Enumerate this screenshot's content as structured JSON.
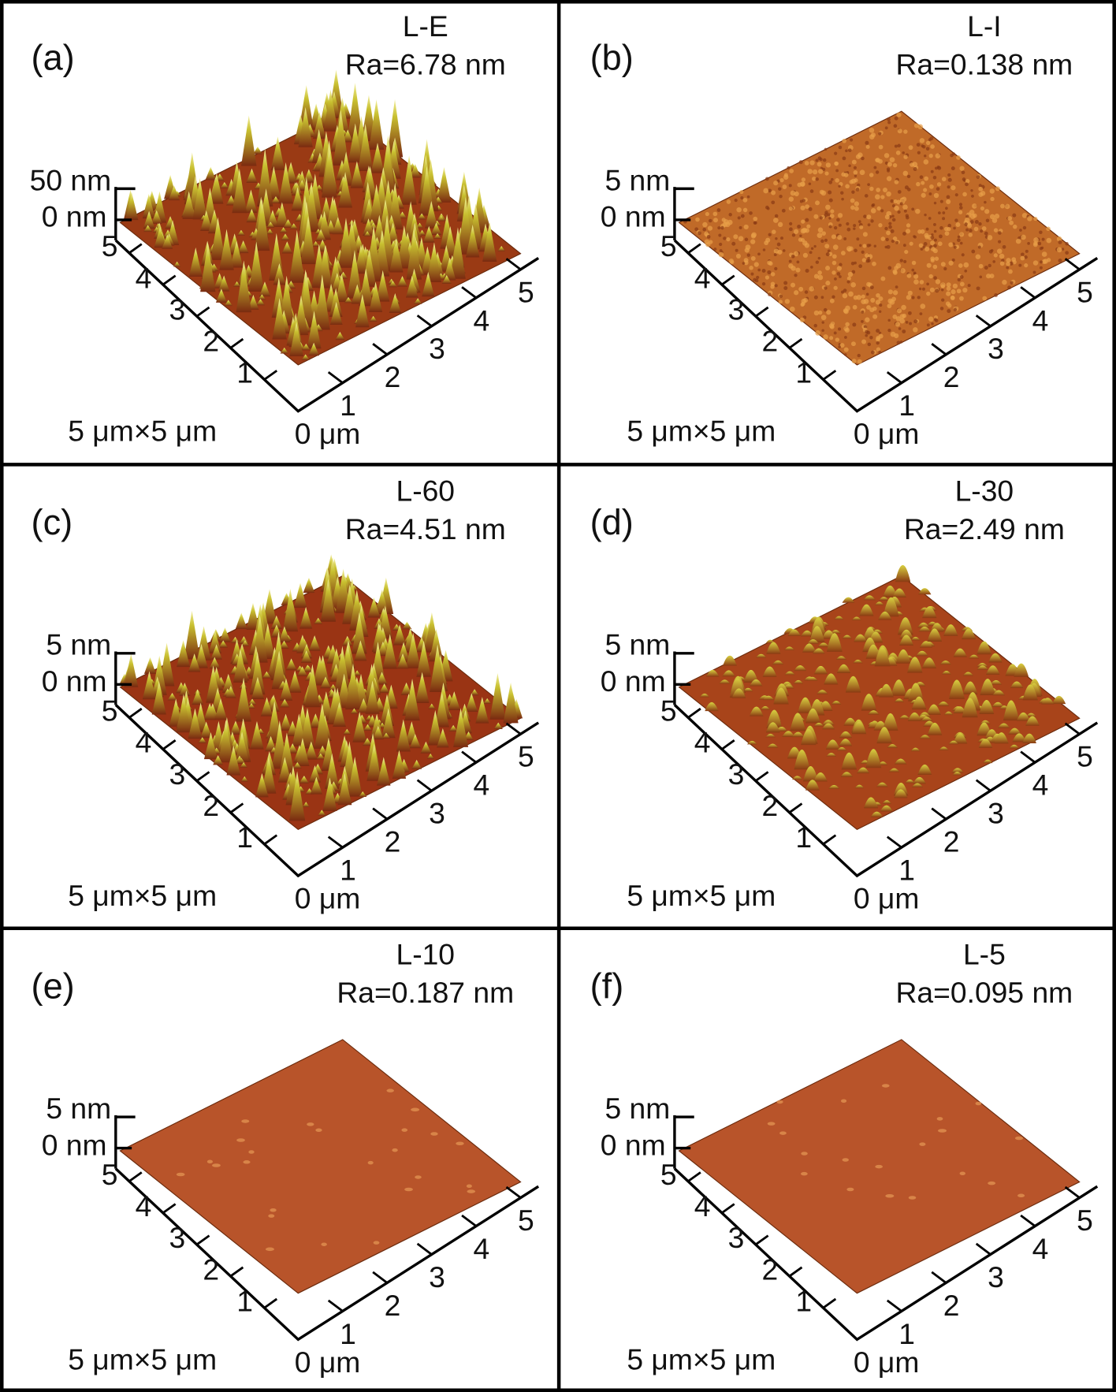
{
  "panels": [
    {
      "label": "(a)",
      "sample": "L-E",
      "ra": "Ra=6.78 nm",
      "z_max": "50 nm",
      "z_zero": "0 nm",
      "y_axis_ticks": [
        "1",
        "2",
        "3",
        "4",
        "5"
      ],
      "x_axis_ticks": [
        "1",
        "2",
        "3",
        "4",
        "5"
      ],
      "scan_size": "5 μm×5 μm",
      "origin": "0 μm"
    },
    {
      "label": "(b)",
      "sample": "L-I",
      "ra": "Ra=0.138 nm",
      "z_max": "5 nm",
      "z_zero": "0 nm",
      "y_axis_ticks": [
        "1",
        "2",
        "3",
        "4",
        "5"
      ],
      "x_axis_ticks": [
        "1",
        "2",
        "3",
        "4",
        "5"
      ],
      "scan_size": "5 μm×5 μm",
      "origin": "0 μm"
    },
    {
      "label": "(c)",
      "sample": "L-60",
      "ra": "Ra=4.51 nm",
      "z_max": "5 nm",
      "z_zero": "0 nm",
      "y_axis_ticks": [
        "1",
        "2",
        "3",
        "4",
        "5"
      ],
      "x_axis_ticks": [
        "1",
        "2",
        "3",
        "4",
        "5"
      ],
      "scan_size": "5 μm×5 μm",
      "origin": "0 μm"
    },
    {
      "label": "(d)",
      "sample": "L-30",
      "ra": "Ra=2.49 nm",
      "z_max": "5 nm",
      "z_zero": "0 nm",
      "y_axis_ticks": [
        "1",
        "2",
        "3",
        "4",
        "5"
      ],
      "x_axis_ticks": [
        "1",
        "2",
        "3",
        "4",
        "5"
      ],
      "scan_size": "5 μm×5 μm",
      "origin": "0 μm"
    },
    {
      "label": "(e)",
      "sample": "L-10",
      "ra": "Ra=0.187 nm",
      "z_max": "5 nm",
      "z_zero": "0 nm",
      "y_axis_ticks": [
        "1",
        "2",
        "3",
        "4",
        "5"
      ],
      "x_axis_ticks": [
        "1",
        "2",
        "3",
        "4",
        "5"
      ],
      "scan_size": "5 μm×5 μm",
      "origin": "0 μm"
    },
    {
      "label": "(f)",
      "sample": "L-5",
      "ra": "Ra=0.095 nm",
      "z_max": "5 nm",
      "z_zero": "0 nm",
      "y_axis_ticks": [
        "1",
        "2",
        "3",
        "4",
        "5"
      ],
      "x_axis_ticks": [
        "1",
        "2",
        "3",
        "4",
        "5"
      ],
      "scan_size": "5 μm×5 μm",
      "origin": "0 μm"
    }
  ]
}
